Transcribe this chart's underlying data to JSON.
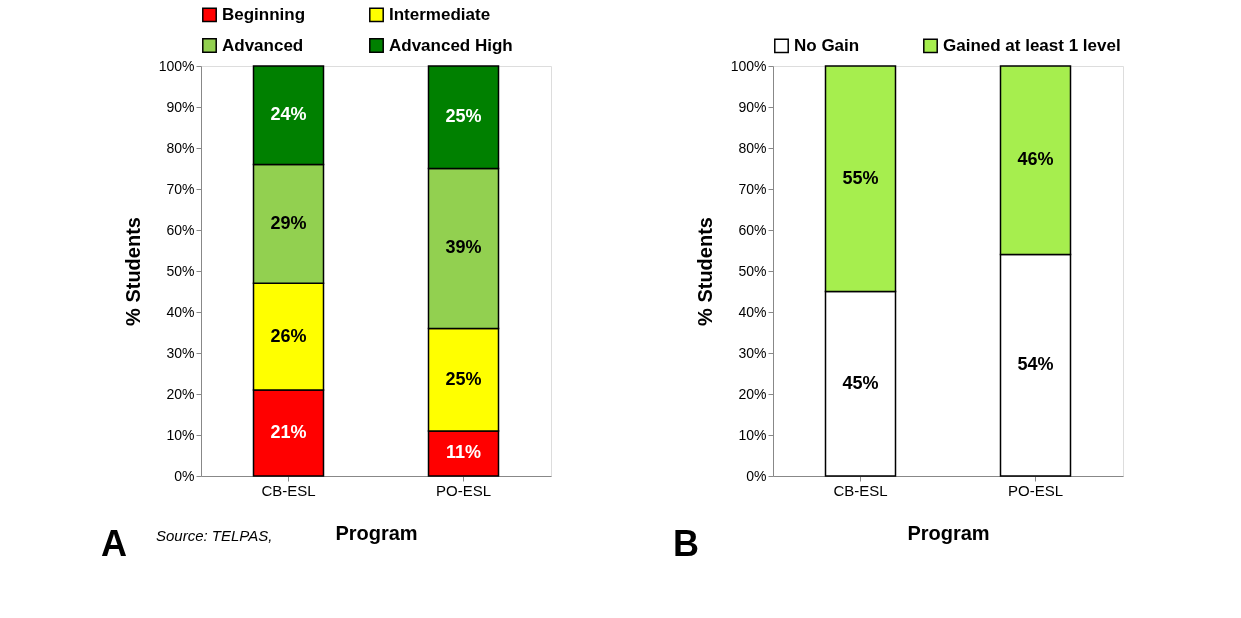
{
  "chart_data": [
    {
      "type": "bar",
      "stacked": true,
      "categories": [
        "CB-ESL",
        "PO-ESL"
      ],
      "xlabel": "Program",
      "ylabel": "%  Students",
      "series": [
        {
          "name": "Beginning",
          "color": "#ff0000",
          "values": [
            21,
            11
          ]
        },
        {
          "name": "Intermediate",
          "color": "#ffff00",
          "values": [
            26,
            25
          ]
        },
        {
          "name": "Advanced",
          "color": "#92d050",
          "values": [
            29,
            39
          ]
        },
        {
          "name": "Advanced High",
          "color": "#008000",
          "values": [
            24,
            25
          ]
        }
      ],
      "ylim": [
        0,
        100
      ],
      "yticks": [
        {
          "value": 0,
          "label": "0%"
        },
        {
          "value": 10,
          "label": "10%"
        },
        {
          "value": 20,
          "label": "20%"
        },
        {
          "value": 30,
          "label": "30%"
        },
        {
          "value": 40,
          "label": "40%"
        },
        {
          "value": 50,
          "label": "50%"
        },
        {
          "value": 60,
          "label": "60%"
        },
        {
          "value": 70,
          "label": "70%"
        },
        {
          "value": 80,
          "label": "80%"
        },
        {
          "value": 90,
          "label": "90%"
        },
        {
          "value": 100,
          "label": "100%"
        }
      ],
      "value_labels": [
        [
          "21%",
          "11%"
        ],
        [
          "26%",
          "25%"
        ],
        [
          "29%",
          "39%"
        ],
        [
          "24%",
          "25%"
        ]
      ],
      "legend": "top",
      "grid": false,
      "annotations": [
        "A",
        "Source: TELPAS,"
      ]
    },
    {
      "type": "bar",
      "stacked": true,
      "categories": [
        "CB-ESL",
        "PO-ESL"
      ],
      "xlabel": "Program",
      "ylabel": "%  Students",
      "series": [
        {
          "name": "No Gain",
          "color": "#ffffff",
          "values": [
            45,
            54
          ]
        },
        {
          "name": "Gained at least 1 level",
          "color": "#a6ee4e",
          "values": [
            55,
            46
          ]
        }
      ],
      "ylim": [
        0,
        100
      ],
      "yticks": [
        {
          "value": 0,
          "label": "0%"
        },
        {
          "value": 10,
          "label": "10%"
        },
        {
          "value": 20,
          "label": "20%"
        },
        {
          "value": 30,
          "label": "30%"
        },
        {
          "value": 40,
          "label": "40%"
        },
        {
          "value": 50,
          "label": "50%"
        },
        {
          "value": 60,
          "label": "60%"
        },
        {
          "value": 70,
          "label": "70%"
        },
        {
          "value": 80,
          "label": "80%"
        },
        {
          "value": 90,
          "label": "90%"
        },
        {
          "value": 100,
          "label": "100%"
        }
      ],
      "value_labels": [
        [
          "45%",
          "54%"
        ],
        [
          "55%",
          "46%"
        ]
      ],
      "legend": "top",
      "grid": false,
      "annotations": [
        "B"
      ]
    }
  ]
}
